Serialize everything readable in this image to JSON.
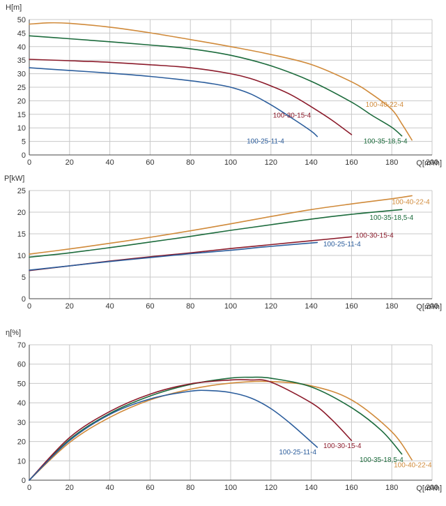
{
  "chart_data": [
    {
      "type": "line",
      "id": "head",
      "ylabel": "H[m]",
      "xlabel": "Q[m³/h]",
      "xlim": [
        0,
        200
      ],
      "ylim": [
        0,
        50
      ],
      "xticks": [
        0,
        20,
        40,
        60,
        80,
        100,
        120,
        140,
        160,
        180,
        200
      ],
      "yticks": [
        0,
        5,
        10,
        15,
        20,
        25,
        30,
        35,
        40,
        45,
        50
      ],
      "grid": true,
      "series": [
        {
          "name": "100-40-22-4",
          "color": "#d08a3a",
          "x": [
            0,
            10,
            20,
            40,
            60,
            80,
            100,
            120,
            140,
            160,
            170,
            180,
            185,
            190
          ],
          "y": [
            48.3,
            48.8,
            48.6,
            47.2,
            45.1,
            42.6,
            40.0,
            37.1,
            33.4,
            27.0,
            22.5,
            16.8,
            11.5,
            5.5
          ]
        },
        {
          "name": "100-35-18,5-4",
          "color": "#1c6b3c",
          "x": [
            0,
            20,
            40,
            60,
            80,
            100,
            120,
            140,
            160,
            170,
            180,
            185
          ],
          "y": [
            44.0,
            42.9,
            41.8,
            40.6,
            39.2,
            36.8,
            32.9,
            27.2,
            19.5,
            14.7,
            10.2,
            7.0
          ]
        },
        {
          "name": "100-30-15-4",
          "color": "#8b1a2a",
          "x": [
            0,
            20,
            40,
            60,
            80,
            100,
            110,
            120,
            130,
            140,
            150,
            160
          ],
          "y": [
            35.3,
            34.8,
            34.2,
            33.3,
            32.2,
            30.0,
            28.2,
            25.5,
            22.2,
            17.8,
            13.0,
            7.5
          ]
        },
        {
          "name": "100-25-11-4",
          "color": "#2b5d9c",
          "x": [
            0,
            20,
            40,
            60,
            80,
            90,
            100,
            110,
            120,
            130,
            140,
            143
          ],
          "y": [
            32.2,
            31.2,
            30.2,
            29.0,
            27.4,
            26.4,
            25.0,
            22.5,
            18.5,
            13.8,
            8.8,
            6.8
          ]
        }
      ],
      "labels": [
        {
          "text": "100-40-22-4",
          "series": 0,
          "x": 167,
          "y": 18.5
        },
        {
          "text": "100-35-18,5-4",
          "series": 1,
          "x": 166,
          "y": 5.0
        },
        {
          "text": "100-30-15-4",
          "series": 2,
          "x": 121,
          "y": 14.5
        },
        {
          "text": "100-25-11-4",
          "series": 3,
          "x": 108,
          "y": 5.0
        }
      ]
    },
    {
      "type": "line",
      "id": "power",
      "ylabel": "P[kW]",
      "xlabel": "Q[m³/h]",
      "xlim": [
        0,
        200
      ],
      "ylim": [
        0,
        25
      ],
      "xticks": [
        0,
        20,
        40,
        60,
        80,
        100,
        120,
        140,
        160,
        180,
        200
      ],
      "yticks": [
        0,
        5,
        10,
        15,
        20,
        25
      ],
      "grid": true,
      "series": [
        {
          "name": "100-40-22-4",
          "color": "#d08a3a",
          "x": [
            0,
            20,
            40,
            60,
            80,
            100,
            120,
            140,
            160,
            180,
            190
          ],
          "y": [
            10.3,
            11.5,
            12.8,
            14.2,
            15.7,
            17.3,
            19.0,
            20.6,
            21.9,
            23.1,
            23.8
          ]
        },
        {
          "name": "100-35-18,5-4",
          "color": "#1c6b3c",
          "x": [
            0,
            20,
            40,
            60,
            80,
            100,
            120,
            140,
            160,
            185
          ],
          "y": [
            9.6,
            10.6,
            11.8,
            13.1,
            14.4,
            15.8,
            17.1,
            18.4,
            19.5,
            20.6
          ]
        },
        {
          "name": "100-30-15-4",
          "color": "#8b1a2a",
          "x": [
            0,
            20,
            40,
            60,
            80,
            100,
            120,
            140,
            160
          ],
          "y": [
            6.5,
            7.6,
            8.7,
            9.7,
            10.6,
            11.6,
            12.5,
            13.4,
            14.3
          ]
        },
        {
          "name": "100-25-11-4",
          "color": "#2b5d9c",
          "x": [
            0,
            20,
            40,
            60,
            80,
            100,
            120,
            143
          ],
          "y": [
            6.6,
            7.6,
            8.6,
            9.5,
            10.4,
            11.2,
            12.1,
            13.0
          ]
        }
      ],
      "labels": [
        {
          "text": "100-40-22-4",
          "series": 0,
          "x": 180,
          "y": 22.3
        },
        {
          "text": "100-35-18,5-4",
          "series": 1,
          "x": 169,
          "y": 18.7
        },
        {
          "text": "100-30-15-4",
          "series": 2,
          "x": 162,
          "y": 14.6
        },
        {
          "text": "100-25-11-4",
          "series": 3,
          "x": 146,
          "y": 12.6
        }
      ]
    },
    {
      "type": "line",
      "id": "efficiency",
      "ylabel": "η[%]",
      "xlabel": "Q[m³/h]",
      "xlim": [
        0,
        200
      ],
      "ylim": [
        0,
        70
      ],
      "xticks": [
        0,
        20,
        40,
        60,
        80,
        100,
        120,
        140,
        160,
        180,
        200
      ],
      "yticks": [
        0,
        10,
        20,
        30,
        40,
        50,
        60,
        70
      ],
      "grid": true,
      "series": [
        {
          "name": "100-40-22-4",
          "color": "#d08a3a",
          "x": [
            0,
            20,
            40,
            60,
            80,
            100,
            120,
            140,
            160,
            180,
            190
          ],
          "y": [
            0,
            19.5,
            32.5,
            41.5,
            47.0,
            50.2,
            51.0,
            48.8,
            41.5,
            25.0,
            10.5
          ]
        },
        {
          "name": "100-35-18,5-4",
          "color": "#1c6b3c",
          "x": [
            0,
            20,
            40,
            60,
            80,
            100,
            110,
            120,
            140,
            160,
            175,
            185
          ],
          "y": [
            0,
            21.0,
            34.5,
            43.5,
            49.5,
            52.8,
            53.2,
            52.7,
            48.2,
            37.5,
            25.5,
            13.5
          ]
        },
        {
          "name": "100-30-15-4",
          "color": "#8b1a2a",
          "x": [
            0,
            20,
            40,
            60,
            80,
            100,
            110,
            120,
            140,
            150,
            160
          ],
          "y": [
            0,
            22.0,
            35.5,
            44.5,
            49.8,
            51.8,
            51.8,
            50.7,
            40.0,
            31.5,
            20.5
          ]
        },
        {
          "name": "100-25-11-4",
          "color": "#2b5d9c",
          "x": [
            0,
            20,
            40,
            60,
            80,
            90,
            100,
            110,
            120,
            130,
            143
          ],
          "y": [
            0,
            20.5,
            34.0,
            42.0,
            46.0,
            46.3,
            45.3,
            42.5,
            37.0,
            29.0,
            17.0
          ]
        }
      ],
      "labels": [
        {
          "text": "100-25-11-4",
          "series": 3,
          "x": 124,
          "y": 14.5
        },
        {
          "text": "100-30-15-4",
          "series": 2,
          "x": 146,
          "y": 17.7
        },
        {
          "text": "100-35-18,5-4",
          "series": 1,
          "x": 164,
          "y": 10.5
        },
        {
          "text": "100-40-22-4",
          "series": 0,
          "x": 181,
          "y": 7.8
        }
      ]
    }
  ]
}
